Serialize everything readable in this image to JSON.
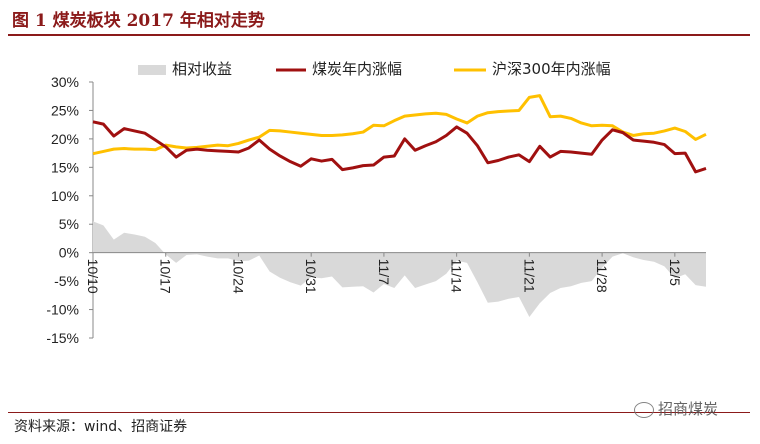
{
  "figure": {
    "title": "图 1  煤炭板块 2017 年相对走势",
    "source": "资料来源：wind、招商证券",
    "watermark": "招商煤炭"
  },
  "chart_data": {
    "type": "line",
    "y_ticks": [
      "30%",
      "25%",
      "20%",
      "15%",
      "10%",
      "5%",
      "0%",
      "-5%",
      "-10%",
      "-15%"
    ],
    "ylim": [
      -15,
      30
    ],
    "x_tick_labels": [
      "10/10",
      "10/17",
      "10/24",
      "10/31",
      "11/7",
      "11/14",
      "11/21",
      "11/28",
      "12/5"
    ],
    "x_tick_index": [
      0,
      7,
      14,
      21,
      28,
      35,
      42,
      49,
      56
    ],
    "legend": [
      "相对收益",
      "煤炭年内涨幅",
      "沪深300年内涨幅"
    ],
    "legend_position": "top",
    "colors": {
      "relative": "#d9d9d9",
      "coal": "#a01010",
      "hs300": "#ffc000"
    },
    "series": [
      {
        "name": "煤炭年内涨幅",
        "values": [
          23.0,
          22.6,
          20.5,
          21.8,
          21.4,
          21.0,
          19.8,
          18.6,
          16.8,
          18.0,
          18.2,
          18.0,
          17.9,
          17.8,
          17.7,
          18.4,
          19.8,
          18.2,
          17.0,
          16.0,
          15.2,
          16.5,
          16.1,
          16.4,
          14.6,
          14.9,
          15.3,
          15.4,
          16.8,
          17.0,
          20.0,
          18.0,
          18.8,
          19.5,
          20.6,
          22.1,
          21.0,
          18.8,
          15.8,
          16.2,
          16.8,
          17.2,
          16.0,
          18.7,
          16.8,
          17.8,
          17.7,
          17.5,
          17.3,
          19.8,
          21.6,
          21.1,
          19.8,
          19.6,
          19.4,
          19.0,
          17.4,
          17.5,
          14.2,
          14.8
        ]
      },
      {
        "name": "沪深300年内涨幅",
        "values": [
          17.4,
          17.8,
          18.2,
          18.3,
          18.2,
          18.2,
          18.1,
          18.9,
          18.6,
          18.4,
          18.5,
          18.7,
          18.9,
          18.8,
          19.2,
          19.8,
          20.3,
          21.5,
          21.4,
          21.2,
          21.0,
          20.8,
          20.6,
          20.6,
          20.7,
          20.9,
          21.2,
          22.4,
          22.3,
          23.2,
          24.0,
          24.2,
          24.4,
          24.5,
          24.3,
          23.5,
          22.8,
          24.0,
          24.6,
          24.8,
          24.9,
          25.0,
          27.3,
          27.6,
          23.9,
          24.0,
          23.6,
          22.8,
          22.3,
          22.4,
          22.3,
          21.2,
          20.6,
          20.9,
          21.0,
          21.4,
          21.9,
          21.3,
          19.9,
          20.8
        ]
      },
      {
        "name": "相对收益",
        "values": [
          5.5,
          4.8,
          2.3,
          3.5,
          3.2,
          2.8,
          1.7,
          -0.3,
          -1.8,
          -0.4,
          -0.3,
          -0.7,
          -1.0,
          -1.0,
          -1.5,
          -1.4,
          -0.5,
          -3.3,
          -4.4,
          -5.2,
          -5.8,
          -4.3,
          -4.5,
          -4.2,
          -6.1,
          -6.0,
          -5.9,
          -7.0,
          -5.5,
          -6.2,
          -4.0,
          -6.2,
          -5.6,
          -5.0,
          -3.7,
          -1.4,
          -1.8,
          -5.2,
          -8.8,
          -8.6,
          -8.1,
          -7.8,
          -11.3,
          -8.9,
          -7.1,
          -6.2,
          -5.9,
          -5.3,
          -5.0,
          -2.6,
          -0.7,
          -0.1,
          -0.8,
          -1.3,
          -1.6,
          -2.4,
          -4.5,
          -3.8,
          -5.7,
          -6.0
        ]
      }
    ]
  }
}
